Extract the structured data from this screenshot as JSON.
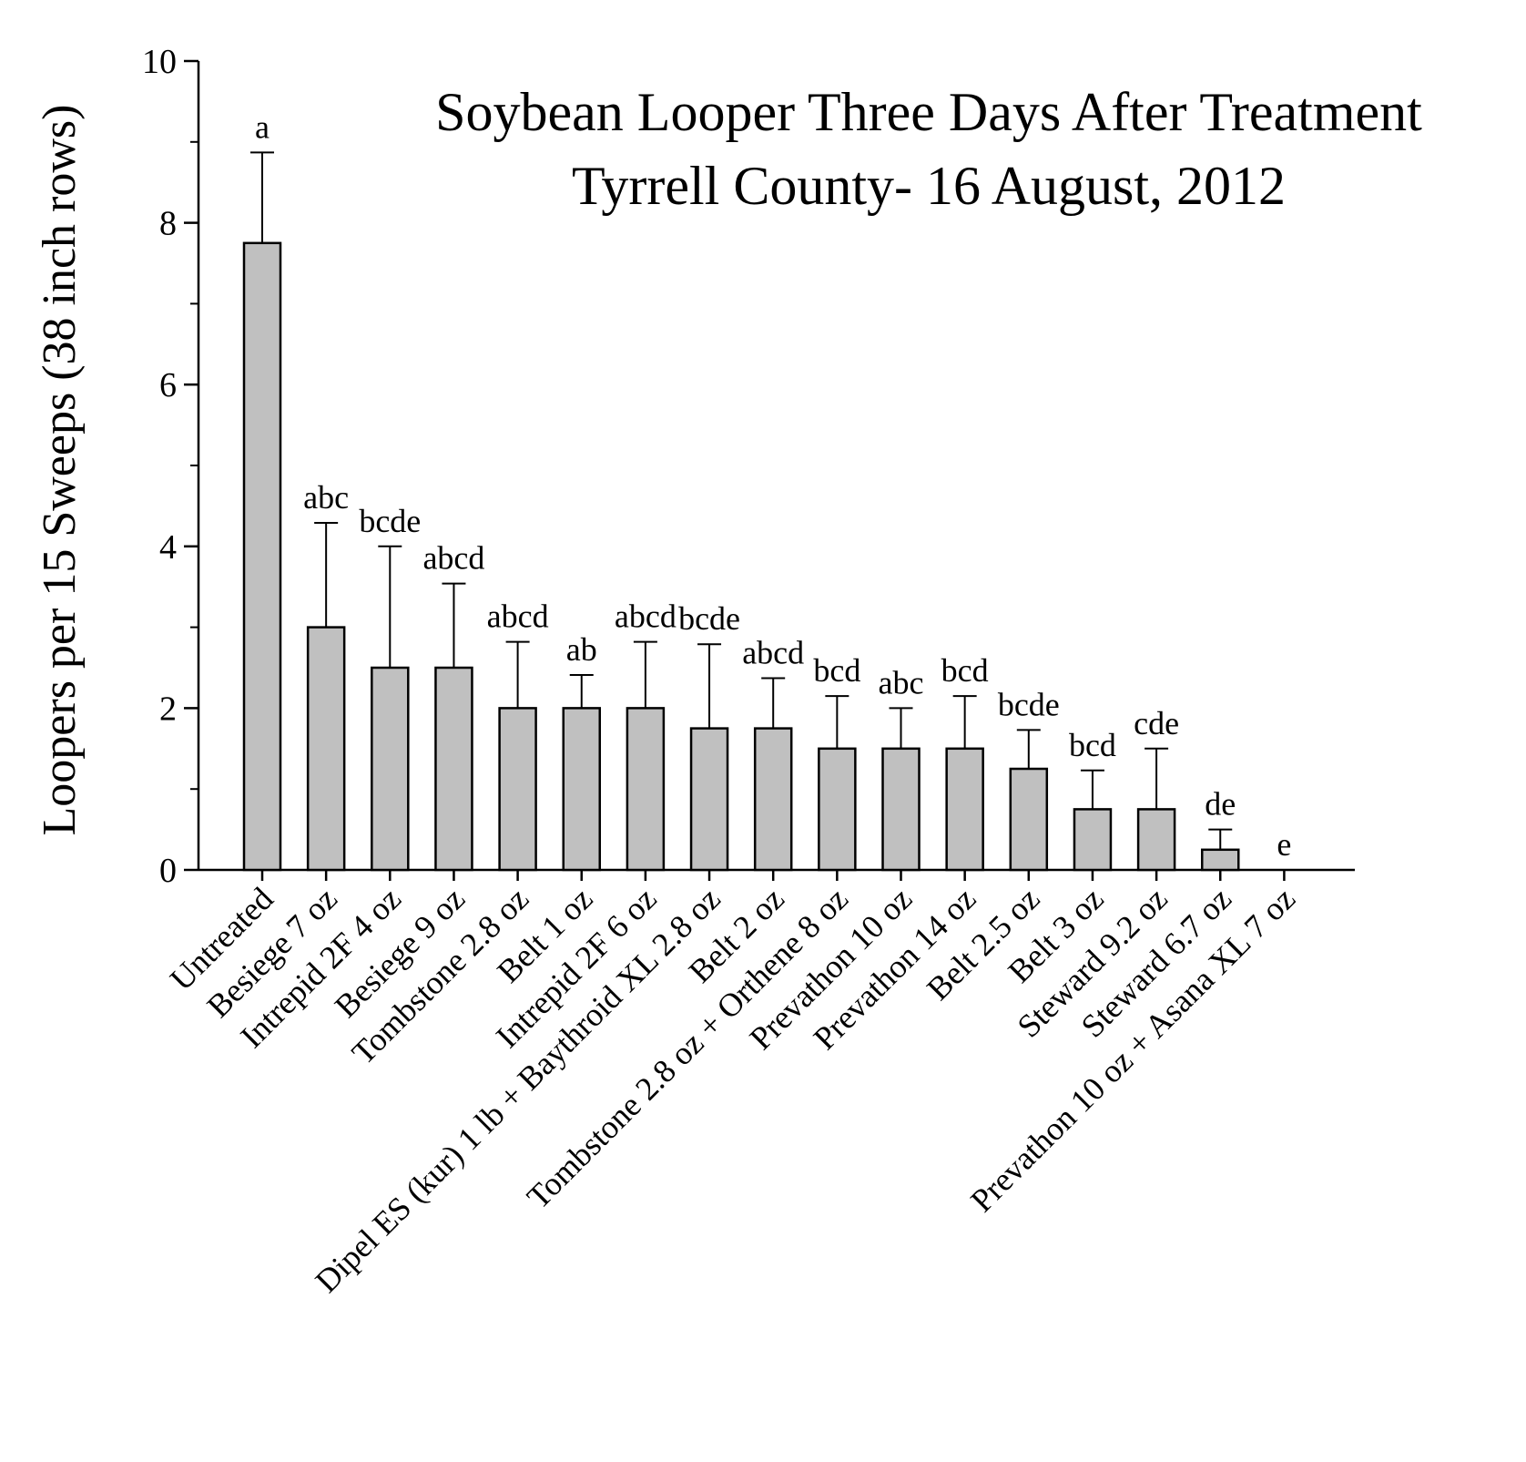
{
  "chart_data": {
    "type": "bar",
    "title": [
      "Soybean Looper Three Days After Treatment",
      "Tyrrell County- 16 August, 2012"
    ],
    "xlabel": "",
    "ylabel": "Loopers per 15 Sweeps (38 inch rows)",
    "ylim": [
      0,
      10
    ],
    "yticks": [
      "0",
      "2",
      "4",
      "6",
      "8",
      "10"
    ],
    "categories": [
      "Untreated",
      "Besiege 7 oz",
      "Intrepid 2F 4 oz",
      "Besiege 9 oz",
      "Tombstone 2.8 oz",
      "Belt 1 oz",
      "Intrepid 2F 6 oz",
      "Dipel ES (kur) 1 lb + Baythroid XL 2.8 oz",
      "Belt 2 oz",
      "Tombstone 2.8 oz + Orthene 8 oz",
      "Prevathon 10 oz",
      "Prevathon 14 oz",
      "Belt 2.5 oz",
      "Belt 3 oz",
      "Steward 9.2 oz",
      "Steward 6.7 oz",
      "Prevathon 10 oz + Asana XL 7 oz"
    ],
    "values": [
      7.75,
      3.0,
      2.5,
      2.5,
      2.0,
      2.0,
      2.0,
      1.75,
      1.75,
      1.5,
      1.5,
      1.5,
      1.25,
      0.75,
      0.75,
      0.25,
      0.0
    ],
    "error_upper": [
      8.87,
      4.29,
      4.0,
      3.54,
      2.82,
      2.41,
      2.82,
      2.79,
      2.37,
      2.15,
      2.0,
      2.15,
      1.73,
      1.23,
      1.5,
      0.5,
      0.0
    ],
    "significance_letters": [
      "a",
      "abc",
      "bcde",
      "abcd",
      "abcd",
      "ab",
      "abcd",
      "bcde",
      "abcd",
      "bcd",
      "abc",
      "bcd",
      "bcde",
      "bcd",
      "cde",
      "de",
      "e"
    ],
    "grid": false,
    "legend": "none",
    "bar_color": "#c0c0c0",
    "edge_color": "#000000"
  }
}
